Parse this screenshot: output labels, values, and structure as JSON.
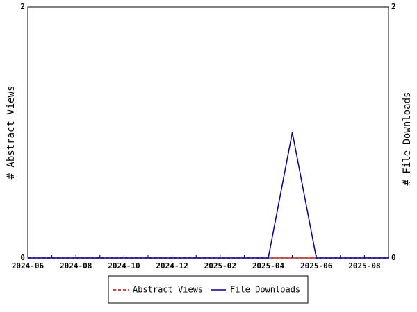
{
  "chart_data": {
    "type": "line",
    "categories": [
      "2024-06",
      null,
      "2024-08",
      null,
      "2024-10",
      null,
      "2024-12",
      null,
      "2025-02",
      null,
      "2025-04",
      null,
      "2025-06",
      null,
      "2025-08",
      null
    ],
    "series": [
      {
        "name": "Abstract Views",
        "color": "#cc0000",
        "dashed": true,
        "values": [
          0,
          0,
          0,
          0,
          0,
          0,
          0,
          0,
          0,
          0,
          0,
          0,
          0,
          0,
          0,
          0
        ]
      },
      {
        "name": "File Downloads",
        "color": "#00008b",
        "axis": "y2",
        "values": [
          0,
          0,
          0,
          0,
          0,
          0,
          0,
          0,
          0,
          0,
          0,
          1,
          0,
          0,
          0,
          0
        ]
      }
    ],
    "ylabel": "# Abstract Views",
    "y2label": "# File Downloads",
    "ylim": [
      0,
      2
    ],
    "yticks": [
      0,
      2
    ],
    "y2lim": [
      0,
      2
    ],
    "y2ticks": [
      0,
      2
    ]
  }
}
